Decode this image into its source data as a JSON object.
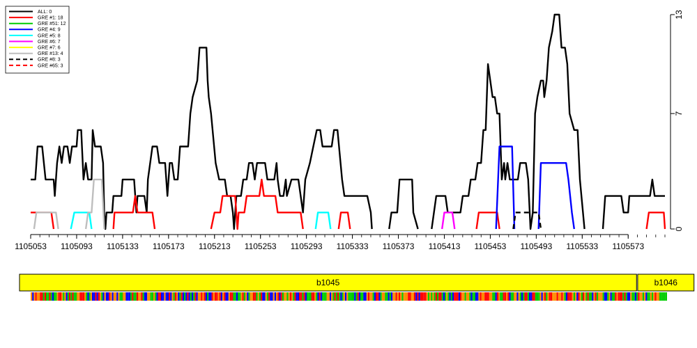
{
  "chart_data": {
    "type": "line",
    "xlim": [
      1105053,
      1105605
    ],
    "ylim": [
      0,
      13
    ],
    "x_ticks": [
      1105053,
      1105093,
      1105133,
      1105173,
      1105213,
      1105253,
      1105293,
      1105333,
      1105373,
      1105413,
      1105453,
      1105493,
      1105533,
      1105573
    ],
    "y_ticks": [
      0,
      7,
      13
    ],
    "legend": {
      "position": "top-left",
      "entries": [
        {
          "label": "ALL: 0",
          "color": "#000000",
          "dash": false
        },
        {
          "label": "GRE #1: 18",
          "color": "#ff0000",
          "dash": false
        },
        {
          "label": "GRE #51: 12",
          "color": "#00cc00",
          "dash": false
        },
        {
          "label": "GRE #4: 9",
          "color": "#0000ff",
          "dash": false
        },
        {
          "label": "GRE #5: 8",
          "color": "#00ffff",
          "dash": false
        },
        {
          "label": "GRE #6: 7",
          "color": "#ff00ff",
          "dash": false
        },
        {
          "label": "GRE #7: 6",
          "color": "#ffff00",
          "dash": false
        },
        {
          "label": "GRE #13: 4",
          "color": "#bebebe",
          "dash": false
        },
        {
          "label": "GRE #8: 3",
          "color": "#000000",
          "dash": true
        },
        {
          "label": "GRE #65: 3",
          "color": "#ff0000",
          "dash": true
        }
      ]
    },
    "series": [
      {
        "color": "#000000",
        "dash": false,
        "segments": [
          [
            [
              1105053,
              3
            ],
            [
              1105057,
              3
            ],
            [
              1105059,
              5
            ],
            [
              1105063,
              5
            ],
            [
              1105066,
              3
            ],
            [
              1105073,
              3
            ],
            [
              1105074,
              2
            ],
            [
              1105076,
              4
            ],
            [
              1105078,
              5
            ],
            [
              1105080,
              4
            ],
            [
              1105082,
              5
            ],
            [
              1105085,
              5
            ],
            [
              1105087,
              4
            ],
            [
              1105089,
              5
            ],
            [
              1105093,
              5
            ],
            [
              1105094,
              6
            ],
            [
              1105097,
              6
            ],
            [
              1105099,
              3
            ],
            [
              1105101,
              4
            ],
            [
              1105103,
              3
            ],
            [
              1105106,
              3
            ],
            [
              1105107,
              6
            ],
            [
              1105109,
              5
            ],
            [
              1105114,
              5
            ],
            [
              1105116,
              4
            ],
            [
              1105117,
              1
            ],
            [
              1105118,
              0
            ],
            [
              1105119,
              1
            ],
            [
              1105124,
              1
            ],
            [
              1105125,
              2
            ],
            [
              1105132,
              2
            ],
            [
              1105133,
              3
            ],
            [
              1105143,
              3
            ],
            [
              1105145,
              1
            ],
            [
              1105146,
              2
            ],
            [
              1105152,
              2
            ],
            [
              1105154,
              1
            ],
            [
              1105155,
              3
            ],
            [
              1105159,
              5
            ],
            [
              1105163,
              5
            ],
            [
              1105165,
              4
            ],
            [
              1105170,
              4
            ],
            [
              1105172,
              2
            ],
            [
              1105174,
              4
            ],
            [
              1105176,
              4
            ],
            [
              1105178,
              3
            ],
            [
              1105181,
              3
            ],
            [
              1105183,
              5
            ],
            [
              1105190,
              5
            ],
            [
              1105192,
              7
            ],
            [
              1105194,
              8
            ],
            [
              1105198,
              9
            ],
            [
              1105200,
              11
            ],
            [
              1105206,
              11
            ],
            [
              1105207,
              9
            ],
            [
              1105208,
              8
            ],
            [
              1105210,
              7
            ],
            [
              1105214,
              4
            ],
            [
              1105217,
              3
            ],
            [
              1105222,
              3
            ],
            [
              1105224,
              2
            ],
            [
              1105227,
              2
            ],
            [
              1105229,
              1
            ],
            [
              1105230,
              0
            ],
            [
              1105232,
              2
            ],
            [
              1105236,
              2
            ],
            [
              1105238,
              3
            ],
            [
              1105241,
              3
            ],
            [
              1105243,
              4
            ],
            [
              1105246,
              4
            ],
            [
              1105248,
              3
            ],
            [
              1105250,
              4
            ],
            [
              1105257,
              4
            ],
            [
              1105259,
              3
            ],
            [
              1105265,
              3
            ],
            [
              1105267,
              4
            ],
            [
              1105268,
              3
            ],
            [
              1105270,
              2
            ],
            [
              1105273,
              2
            ],
            [
              1105275,
              3
            ],
            [
              1105276,
              2
            ],
            [
              1105280,
              3
            ],
            [
              1105286,
              3
            ],
            [
              1105288,
              2
            ],
            [
              1105290,
              1
            ],
            [
              1105292,
              3
            ],
            [
              1105296,
              4
            ],
            [
              1105299,
              5
            ],
            [
              1105302,
              6
            ],
            [
              1105305,
              6
            ],
            [
              1105307,
              5
            ],
            [
              1105315,
              5
            ],
            [
              1105317,
              6
            ],
            [
              1105320,
              6
            ],
            [
              1105324,
              3
            ],
            [
              1105326,
              2
            ],
            [
              1105346,
              2
            ],
            [
              1105349,
              1
            ],
            [
              1105350,
              0
            ]
          ],
          [
            [
              1105365,
              0
            ],
            [
              1105367,
              1
            ],
            [
              1105372,
              1
            ],
            [
              1105374,
              3
            ],
            [
              1105385,
              3
            ],
            [
              1105386,
              1
            ],
            [
              1105390,
              0
            ]
          ],
          [
            [
              1105402,
              0
            ],
            [
              1105404,
              1
            ],
            [
              1105406,
              2
            ],
            [
              1105414,
              2
            ],
            [
              1105416,
              1
            ],
            [
              1105427,
              1
            ],
            [
              1105429,
              2
            ],
            [
              1105434,
              2
            ],
            [
              1105436,
              3
            ],
            [
              1105440,
              3
            ],
            [
              1105442,
              4
            ],
            [
              1105445,
              4
            ],
            [
              1105447,
              6
            ],
            [
              1105449,
              6
            ],
            [
              1105451,
              10
            ],
            [
              1105453,
              9
            ],
            [
              1105455,
              8
            ],
            [
              1105457,
              8
            ],
            [
              1105459,
              7
            ],
            [
              1105461,
              7
            ],
            [
              1105463,
              3
            ],
            [
              1105465,
              4
            ],
            [
              1105466,
              3
            ],
            [
              1105468,
              4
            ],
            [
              1105470,
              3
            ],
            [
              1105477,
              3
            ],
            [
              1105479,
              4
            ],
            [
              1105484,
              4
            ],
            [
              1105486,
              3
            ],
            [
              1105488,
              0
            ],
            [
              1105490,
              1
            ],
            [
              1105492,
              7
            ],
            [
              1105494,
              8
            ],
            [
              1105497,
              9
            ],
            [
              1105499,
              9
            ],
            [
              1105500,
              8
            ],
            [
              1105502,
              9
            ],
            [
              1105504,
              11
            ],
            [
              1105507,
              12
            ],
            [
              1105509,
              13
            ],
            [
              1105513,
              13
            ],
            [
              1105515,
              11
            ],
            [
              1105518,
              11
            ],
            [
              1105520,
              10
            ],
            [
              1105522,
              7
            ],
            [
              1105526,
              6
            ],
            [
              1105529,
              6
            ],
            [
              1105531,
              3
            ],
            [
              1105535,
              0
            ]
          ],
          [
            [
              1105551,
              0
            ],
            [
              1105553,
              2
            ],
            [
              1105567,
              2
            ],
            [
              1105569,
              1
            ],
            [
              1105573,
              1
            ],
            [
              1105574,
              2
            ],
            [
              1105578,
              2
            ],
            [
              1105580,
              2
            ],
            [
              1105592,
              2
            ],
            [
              1105594,
              3
            ],
            [
              1105596,
              2
            ],
            [
              1105605,
              2
            ]
          ]
        ]
      },
      {
        "color": "#ff0000",
        "dash": false,
        "segments": [
          [
            [
              1105053,
              1
            ],
            [
              1105071,
              1
            ],
            [
              1105073,
              0
            ]
          ],
          [
            [
              1105125,
              0
            ],
            [
              1105126,
              1
            ],
            [
              1105142,
              1
            ],
            [
              1105144,
              2
            ],
            [
              1105146,
              1
            ],
            [
              1105159,
              1
            ],
            [
              1105161,
              0
            ]
          ],
          [
            [
              1105210,
              0
            ],
            [
              1105213,
              1
            ],
            [
              1105218,
              1
            ],
            [
              1105220,
              2
            ],
            [
              1105231,
              2
            ],
            [
              1105233,
              0
            ],
            [
              1105234,
              1
            ],
            [
              1105239,
              1
            ],
            [
              1105241,
              2
            ],
            [
              1105252,
              2
            ],
            [
              1105254,
              3
            ],
            [
              1105256,
              2
            ],
            [
              1105266,
              2
            ],
            [
              1105268,
              1
            ],
            [
              1105288,
              1
            ],
            [
              1105290,
              0
            ]
          ],
          [
            [
              1105321,
              0
            ],
            [
              1105323,
              1
            ],
            [
              1105329,
              1
            ],
            [
              1105331,
              0
            ]
          ],
          [
            [
              1105441,
              0
            ],
            [
              1105443,
              1
            ],
            [
              1105459,
              1
            ],
            [
              1105461,
              0
            ]
          ],
          [
            [
              1105589,
              0
            ],
            [
              1105591,
              1
            ],
            [
              1105604,
              1
            ],
            [
              1105605,
              0
            ]
          ]
        ]
      },
      {
        "color": "#0000ff",
        "dash": false,
        "segments": [
          [
            [
              1105458,
              0
            ],
            [
              1105461,
              5
            ],
            [
              1105472,
              5
            ],
            [
              1105474,
              0
            ]
          ],
          [
            [
              1105495,
              0
            ],
            [
              1105497,
              4
            ],
            [
              1105519,
              4
            ],
            [
              1105521,
              3
            ],
            [
              1105524,
              1
            ],
            [
              1105526,
              0
            ]
          ]
        ]
      },
      {
        "color": "#00ffff",
        "dash": false,
        "segments": [
          [
            [
              1105088,
              0
            ],
            [
              1105091,
              1
            ],
            [
              1105104,
              1
            ],
            [
              1105106,
              0
            ]
          ],
          [
            [
              1105301,
              0
            ],
            [
              1105303,
              1
            ],
            [
              1105312,
              1
            ],
            [
              1105314,
              0
            ]
          ]
        ]
      },
      {
        "color": "#ff00ff",
        "dash": false,
        "segments": [
          [
            [
              1105411,
              0
            ],
            [
              1105413,
              1
            ],
            [
              1105420,
              1
            ],
            [
              1105422,
              0
            ]
          ]
        ]
      },
      {
        "color": "#bebebe",
        "dash": false,
        "segments": [
          [
            [
              1105056,
              0
            ],
            [
              1105058,
              1
            ],
            [
              1105075,
              1
            ],
            [
              1105077,
              0
            ]
          ],
          [
            [
              1105101,
              0
            ],
            [
              1105103,
              1
            ],
            [
              1105106,
              1
            ],
            [
              1105108,
              3
            ],
            [
              1105115,
              3
            ],
            [
              1105117,
              0
            ]
          ]
        ]
      },
      {
        "color": "#000000",
        "dash": true,
        "segments": [
          [
            [
              1105473,
              0
            ],
            [
              1105475,
              1
            ],
            [
              1105495,
              1
            ],
            [
              1105497,
              0
            ]
          ]
        ]
      }
    ],
    "genes": [
      {
        "label": "b1045",
        "start": 1105053,
        "end": 1105590
      },
      {
        "label": "b1046",
        "start": 1105591,
        "end": 1105640
      }
    ],
    "sequence_colors": [
      "#00cc00",
      "#0000ff",
      "#ff8c00",
      "#ff0000"
    ]
  }
}
